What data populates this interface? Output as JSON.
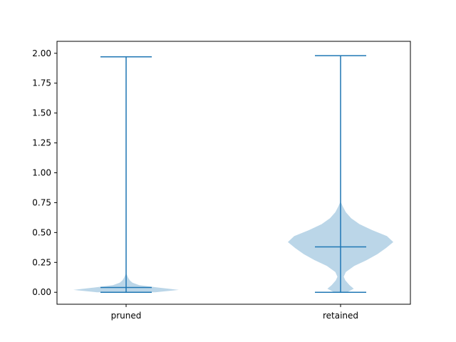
{
  "chart_data": {
    "type": "violin",
    "title": "",
    "xlabel": "",
    "ylabel": "",
    "ylim": [
      -0.1,
      2.1
    ],
    "yticks": [
      "0.00",
      "0.25",
      "0.50",
      "0.75",
      "1.00",
      "1.25",
      "1.50",
      "1.75",
      "2.00"
    ],
    "categories": [
      "pruned",
      "retained"
    ],
    "grid": false,
    "colors": {
      "body": "#1f77b4",
      "body_alpha": 0.3,
      "lines": "#1f77b4"
    },
    "series": [
      {
        "category": "pruned",
        "min": 0.0,
        "max": 1.97,
        "median": 0.04,
        "density": [
          [
            0.0,
            0.55
          ],
          [
            0.02,
            1.0
          ],
          [
            0.04,
            0.6
          ],
          [
            0.06,
            0.25
          ],
          [
            0.08,
            0.12
          ],
          [
            0.1,
            0.07
          ],
          [
            0.12,
            0.04
          ],
          [
            0.14,
            0.02
          ],
          [
            0.16,
            0.0
          ]
        ]
      },
      {
        "category": "retained",
        "min": 0.0,
        "max": 1.98,
        "median": 0.38,
        "density": [
          [
            0.0,
            0.12
          ],
          [
            0.03,
            0.25
          ],
          [
            0.06,
            0.17
          ],
          [
            0.1,
            0.09
          ],
          [
            0.13,
            0.06
          ],
          [
            0.17,
            0.1
          ],
          [
            0.22,
            0.26
          ],
          [
            0.27,
            0.5
          ],
          [
            0.32,
            0.7
          ],
          [
            0.37,
            0.86
          ],
          [
            0.42,
            1.0
          ],
          [
            0.47,
            0.88
          ],
          [
            0.52,
            0.6
          ],
          [
            0.57,
            0.36
          ],
          [
            0.62,
            0.2
          ],
          [
            0.67,
            0.1
          ],
          [
            0.72,
            0.04
          ],
          [
            0.76,
            0.0
          ]
        ]
      }
    ]
  }
}
